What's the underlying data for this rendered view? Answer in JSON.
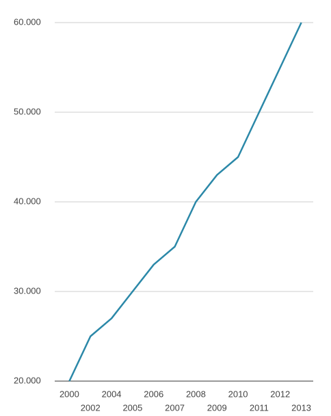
{
  "chart_data": {
    "type": "line",
    "categories": [
      "2000",
      "2002",
      "2004",
      "2005",
      "2006",
      "2007",
      "2008",
      "2009",
      "2010",
      "2011",
      "2012",
      "2013"
    ],
    "values": [
      20000,
      25000,
      27000,
      30000,
      33000,
      35000,
      40000,
      43000,
      45000,
      50000,
      55000,
      60000
    ],
    "color": "#2b88a8",
    "ylim": [
      20000,
      60000
    ],
    "yticks": [
      {
        "value": 20000,
        "label": "20.000"
      },
      {
        "value": 30000,
        "label": "30.000"
      },
      {
        "value": 40000,
        "label": "40.000"
      },
      {
        "value": 50000,
        "label": "50.000"
      },
      {
        "value": 60000,
        "label": "60.000"
      }
    ],
    "grid": true
  }
}
